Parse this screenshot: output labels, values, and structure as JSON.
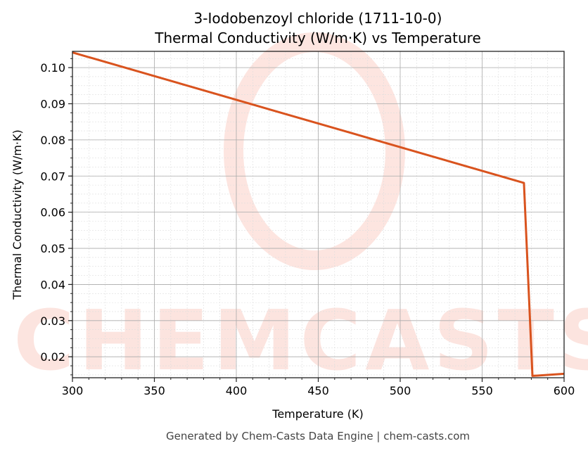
{
  "chart_data": {
    "type": "line",
    "title": "3-Iodobenzoyl chloride (1711-10-0)",
    "subtitle": "Thermal Conductivity (W/m·K) vs Temperature",
    "xlabel": "Temperature (K)",
    "ylabel": "Thermal Conductivity (W/m·K)",
    "xlim": [
      300,
      600
    ],
    "ylim": [
      0.0142,
      0.1045
    ],
    "xticks": [
      300,
      350,
      400,
      450,
      500,
      550,
      600
    ],
    "yticks": [
      0.02,
      0.03,
      0.04,
      0.05,
      0.06,
      0.07,
      0.08,
      0.09,
      0.1
    ],
    "ytick_labels": [
      "0.02",
      "0.03",
      "0.04",
      "0.05",
      "0.06",
      "0.07",
      "0.08",
      "0.09",
      "0.10"
    ],
    "grid": true,
    "series": [
      {
        "color": "#d9531e",
        "x": [
          300,
          575.5,
          580.7,
          600
        ],
        "y": [
          0.1042,
          0.0681,
          0.0147,
          0.0153
        ]
      }
    ],
    "watermark": "CHEMCASTS",
    "footer": "Generated by Chem-Casts Data Engine | chem-casts.com"
  }
}
